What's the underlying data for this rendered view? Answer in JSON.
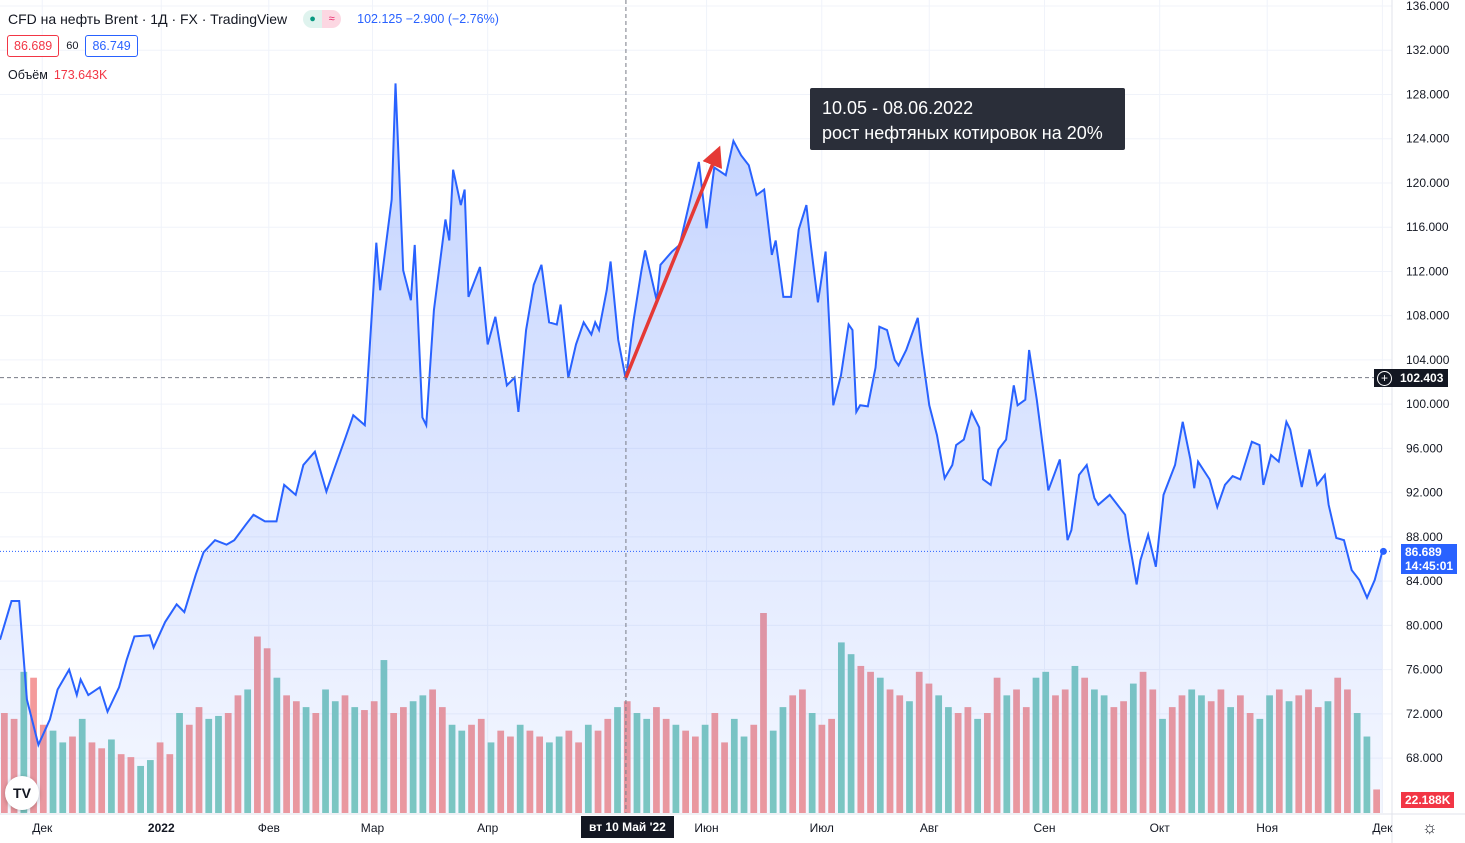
{
  "header": {
    "title": "CFD на нефть Brent · 1Д · FX  · TradingView",
    "ohlc_change": "102.125 −2.900 (−2.76%)",
    "sell_price": "86.689",
    "spread": "60",
    "buy_price": "86.749",
    "volume_label": "Объём",
    "volume_value": "173.643K",
    "pill_market": "●",
    "pill_replay": "≈"
  },
  "annotation": {
    "line1": "10.05 - 08.06.2022",
    "line2": "рост нефтяных котировок на 20%"
  },
  "crosshair": {
    "price_label": "102.403",
    "date_label": "вт 10 Май '22",
    "price": 102.403,
    "day": 163
  },
  "last_price": {
    "price_label": "86.689",
    "timer": "14:45:01",
    "price": 86.689,
    "volume_label": "22.188K"
  },
  "colors": {
    "line": "#2962ff",
    "up": "#7fcbbf",
    "down": "#f49a9a",
    "arrow": "#e53935"
  },
  "chart_data": {
    "type": "area",
    "title": "CFD на нефть Brent · 1Д",
    "ylim": [
      66,
      136
    ],
    "yticks": [
      "136.000",
      "132.000",
      "128.000",
      "124.000",
      "120.000",
      "116.000",
      "112.000",
      "108.000",
      "104.000",
      "100.000",
      "96.000",
      "92.000",
      "88.000",
      "84.000",
      "80.000",
      "76.000",
      "72.000",
      "68.000"
    ],
    "xticks": [
      {
        "label": "Дек",
        "day": 11
      },
      {
        "label": "2022",
        "day": 42
      },
      {
        "label": "Фев",
        "day": 70
      },
      {
        "label": "Мар",
        "day": 97
      },
      {
        "label": "Апр",
        "day": 127
      },
      {
        "label": "Июн",
        "day": 184
      },
      {
        "label": "Июл",
        "day": 214
      },
      {
        "label": "Авг",
        "day": 242
      },
      {
        "label": "Сен",
        "day": 272
      },
      {
        "label": "Окт",
        "day": 302
      },
      {
        "label": "Ноя",
        "day": 330
      },
      {
        "label": "Дек",
        "day": 360
      }
    ],
    "price": [
      [
        0,
        78.7
      ],
      [
        3,
        82.2
      ],
      [
        5,
        82.2
      ],
      [
        7,
        73.3
      ],
      [
        10,
        69.2
      ],
      [
        13,
        71.5
      ],
      [
        15,
        74.2
      ],
      [
        18,
        76.0
      ],
      [
        20,
        73.7
      ],
      [
        21,
        75.1
      ],
      [
        23,
        73.7
      ],
      [
        26,
        74.4
      ],
      [
        28,
        72.2
      ],
      [
        31,
        74.4
      ],
      [
        33,
        76.9
      ],
      [
        35,
        79.0
      ],
      [
        39,
        79.1
      ],
      [
        40,
        78.0
      ],
      [
        43,
        80.3
      ],
      [
        46,
        81.9
      ],
      [
        48,
        81.2
      ],
      [
        51,
        84.6
      ],
      [
        53,
        86.6
      ],
      [
        56,
        87.7
      ],
      [
        59,
        87.3
      ],
      [
        61,
        87.7
      ],
      [
        64,
        89.1
      ],
      [
        66,
        90.0
      ],
      [
        69,
        89.4
      ],
      [
        72,
        89.4
      ],
      [
        74,
        92.7
      ],
      [
        77,
        91.8
      ],
      [
        79,
        94.5
      ],
      [
        82,
        95.7
      ],
      [
        85,
        92.1
      ],
      [
        87,
        94.1
      ],
      [
        90,
        97.0
      ],
      [
        92,
        99.0
      ],
      [
        95,
        98.1
      ],
      [
        98,
        114.6
      ],
      [
        99,
        110.3
      ],
      [
        102,
        118.5
      ],
      [
        103,
        129.0
      ],
      [
        105,
        112.1
      ],
      [
        107,
        109.4
      ],
      [
        108,
        114.4
      ],
      [
        110,
        98.8
      ],
      [
        111,
        98.1
      ],
      [
        113,
        108.5
      ],
      [
        116,
        116.7
      ],
      [
        117,
        114.8
      ],
      [
        118,
        121.2
      ],
      [
        120,
        118.0
      ],
      [
        121,
        119.4
      ],
      [
        122,
        109.7
      ],
      [
        125,
        112.4
      ],
      [
        127,
        105.4
      ],
      [
        129,
        107.9
      ],
      [
        132,
        101.7
      ],
      [
        134,
        102.4
      ],
      [
        135,
        99.3
      ],
      [
        137,
        106.7
      ],
      [
        139,
        110.8
      ],
      [
        141,
        112.6
      ],
      [
        143,
        107.4
      ],
      [
        145,
        107.2
      ],
      [
        146,
        109.0
      ],
      [
        148,
        102.4
      ],
      [
        150,
        105.4
      ],
      [
        152,
        107.4
      ],
      [
        154,
        106.3
      ],
      [
        155,
        107.4
      ],
      [
        156,
        106.7
      ],
      [
        158,
        110.3
      ],
      [
        159,
        112.9
      ],
      [
        161,
        105.8
      ],
      [
        163,
        102.2
      ],
      [
        165,
        107.6
      ],
      [
        167,
        112.0
      ],
      [
        168,
        113.9
      ],
      [
        171,
        109.4
      ],
      [
        172,
        112.6
      ],
      [
        175,
        113.8
      ],
      [
        177,
        114.4
      ],
      [
        180,
        118.9
      ],
      [
        182,
        121.9
      ],
      [
        184,
        115.9
      ],
      [
        186,
        121.4
      ],
      [
        189,
        120.7
      ],
      [
        191,
        123.8
      ],
      [
        193,
        122.5
      ],
      [
        195,
        121.6
      ],
      [
        197,
        118.9
      ],
      [
        199,
        119.4
      ],
      [
        201,
        113.5
      ],
      [
        202,
        114.8
      ],
      [
        204,
        109.7
      ],
      [
        206,
        109.7
      ],
      [
        208,
        115.8
      ],
      [
        210,
        118.0
      ],
      [
        211,
        114.8
      ],
      [
        213,
        109.2
      ],
      [
        215,
        113.8
      ],
      [
        217,
        99.9
      ],
      [
        219,
        102.6
      ],
      [
        221,
        107.2
      ],
      [
        222,
        106.7
      ],
      [
        223,
        99.3
      ],
      [
        224,
        99.9
      ],
      [
        226,
        99.8
      ],
      [
        228,
        103.3
      ],
      [
        229,
        107.0
      ],
      [
        231,
        106.7
      ],
      [
        233,
        104.0
      ],
      [
        234,
        103.5
      ],
      [
        236,
        104.9
      ],
      [
        239,
        107.8
      ],
      [
        240,
        104.9
      ],
      [
        242,
        99.9
      ],
      [
        244,
        97.2
      ],
      [
        246,
        93.3
      ],
      [
        248,
        94.5
      ],
      [
        249,
        96.3
      ],
      [
        251,
        96.8
      ],
      [
        253,
        99.3
      ],
      [
        255,
        97.9
      ],
      [
        256,
        93.2
      ],
      [
        258,
        92.7
      ],
      [
        260,
        95.9
      ],
      [
        262,
        96.8
      ],
      [
        264,
        101.7
      ],
      [
        265,
        99.9
      ],
      [
        267,
        100.4
      ],
      [
        268,
        104.9
      ],
      [
        270,
        100.4
      ],
      [
        272,
        95.0
      ],
      [
        273,
        92.2
      ],
      [
        276,
        95.0
      ],
      [
        278,
        87.7
      ],
      [
        279,
        88.6
      ],
      [
        281,
        93.6
      ],
      [
        283,
        94.5
      ],
      [
        285,
        91.5
      ],
      [
        286,
        90.9
      ],
      [
        289,
        91.8
      ],
      [
        293,
        90.0
      ],
      [
        294,
        87.7
      ],
      [
        296,
        83.7
      ],
      [
        297,
        85.9
      ],
      [
        299,
        88.2
      ],
      [
        301,
        85.3
      ],
      [
        303,
        91.8
      ],
      [
        306,
        94.5
      ],
      [
        308,
        98.4
      ],
      [
        310,
        95.0
      ],
      [
        311,
        92.4
      ],
      [
        312,
        94.8
      ],
      [
        315,
        93.2
      ],
      [
        317,
        90.7
      ],
      [
        319,
        92.7
      ],
      [
        321,
        93.5
      ],
      [
        323,
        93.2
      ],
      [
        326,
        96.6
      ],
      [
        328,
        96.3
      ],
      [
        329,
        92.7
      ],
      [
        331,
        95.4
      ],
      [
        333,
        94.8
      ],
      [
        335,
        98.4
      ],
      [
        336,
        97.7
      ],
      [
        339,
        92.5
      ],
      [
        341,
        95.9
      ],
      [
        343,
        92.7
      ],
      [
        345,
        93.6
      ],
      [
        346,
        90.9
      ],
      [
        348,
        87.9
      ],
      [
        350,
        87.7
      ],
      [
        352,
        85.0
      ],
      [
        354,
        84.1
      ],
      [
        356,
        82.5
      ],
      [
        358,
        84.1
      ],
      [
        360,
        86.7
      ]
    ],
    "volume_k": [
      170,
      160,
      240,
      230,
      150,
      140,
      120,
      130,
      160,
      120,
      110,
      125,
      100,
      95,
      80,
      90,
      120,
      100,
      170,
      150,
      180,
      160,
      165,
      170,
      200,
      210,
      300,
      280,
      230,
      200,
      190,
      180,
      170,
      210,
      190,
      200,
      180,
      175,
      190,
      260,
      170,
      180,
      190,
      200,
      210,
      180,
      150,
      140,
      150,
      160,
      120,
      140,
      130,
      150,
      140,
      130,
      120,
      130,
      140,
      120,
      150,
      140,
      160,
      180,
      190,
      170,
      160,
      180,
      160,
      150,
      140,
      130,
      150,
      170,
      120,
      160,
      130,
      150,
      340,
      140,
      180,
      200,
      210,
      170,
      150,
      160,
      290,
      270,
      250,
      240,
      230,
      210,
      200,
      190,
      240,
      220,
      200,
      180,
      170,
      180,
      160,
      170,
      230,
      200,
      210,
      180,
      230,
      240,
      200,
      210,
      250,
      230,
      210,
      200,
      180,
      190,
      220,
      240,
      210,
      160,
      180,
      200,
      210,
      200,
      190,
      210,
      180,
      200,
      170,
      160,
      200,
      210,
      190,
      200,
      210,
      180,
      190,
      230,
      210,
      170,
      130,
      40
    ],
    "volume_dir": "ddudduududdudduuddudduudduddudduduududdudduudduudduddudduuddudduduudduddudduudduuddudduudduddudduudduddudduudduduudduddudduuddudduudud"
  }
}
